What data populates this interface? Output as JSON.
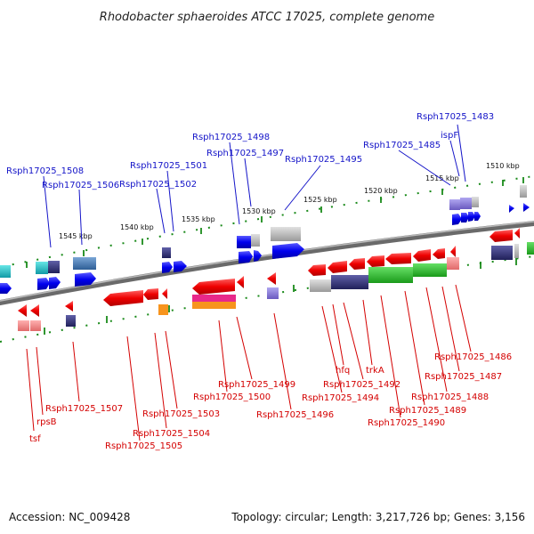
{
  "title": "Rhodobacter sphaeroides ATCC 17025, complete genome",
  "footer": {
    "accession": "Accession: NC_009428",
    "topology": "Topology: circular; Length: 3,217,726 bp; Genes: 3,156"
  },
  "scale_labels": [
    {
      "text": "1510 kbp"
    },
    {
      "text": "1515 kbp"
    },
    {
      "text": "1520 kbp"
    },
    {
      "text": "1525 kbp"
    },
    {
      "text": "1530 kbp"
    },
    {
      "text": "1535 kbp"
    },
    {
      "text": "1540 kbp"
    },
    {
      "text": "1545 kbp"
    }
  ],
  "top_genes": [
    "Rsph17025_1483",
    "ispF",
    "Rsph17025_1485",
    "Rsph17025_1495",
    "Rsph17025_1497",
    "Rsph17025_1498",
    "Rsph17025_1501",
    "Rsph17025_1502",
    "Rsph17025_1506",
    "Rsph17025_1508"
  ],
  "bottom_genes": [
    "Rsph17025_1486",
    "Rsph17025_1487",
    "Rsph17025_1488",
    "Rsph17025_1489",
    "Rsph17025_1490",
    "trkA",
    "Rsph17025_1492",
    "hfq",
    "Rsph17025_1494",
    "Rsph17025_1496",
    "Rsph17025_1499",
    "Rsph17025_1500",
    "Rsph17025_1503",
    "Rsph17025_1504",
    "Rsph17025_1505",
    "Rsph17025_1507",
    "rpsB",
    "tsf"
  ],
  "colors": {
    "forward": "#1010e8",
    "reverse": "#ee1010",
    "top_label": "#1414c8",
    "bottom_label": "#d40000",
    "backbone": "#7a7a7a",
    "ticks": "#1a8a1a"
  }
}
